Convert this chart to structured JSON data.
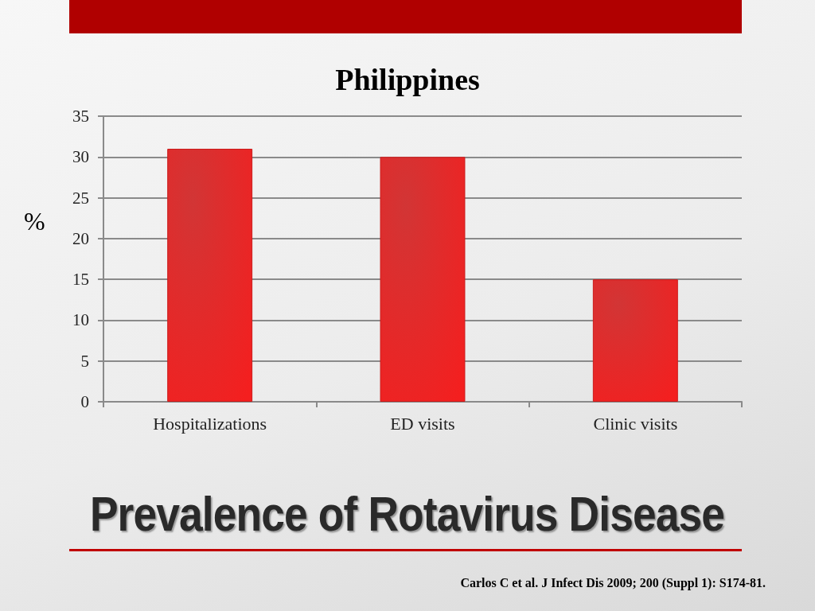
{
  "chart_data": {
    "type": "bar",
    "title": "Philippines",
    "ylabel": "%",
    "categories": [
      "Hospitalizations",
      "ED visits",
      "Clinic visits"
    ],
    "values": [
      31,
      30,
      15
    ],
    "color": "#cc1a1a",
    "ylim": [
      0,
      35
    ],
    "yticks": [
      0,
      5,
      10,
      15,
      20,
      25,
      30,
      35
    ],
    "grid": "y",
    "annotations": [
      "Prevalence of Rotavirus Disease",
      "Carlos C et al. J Infect Dis 2009; 200 (Suppl 1): S174-81."
    ]
  }
}
